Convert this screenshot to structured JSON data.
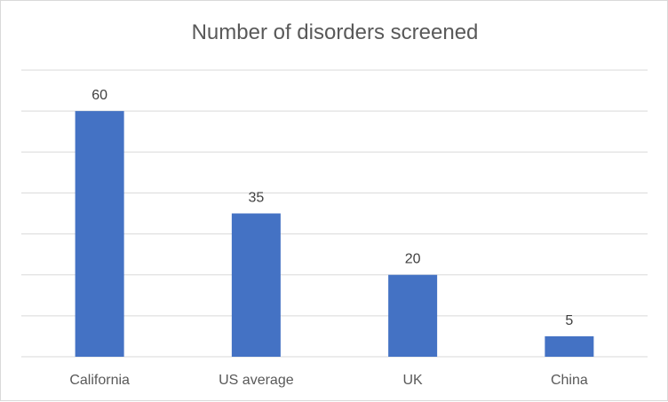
{
  "chart_data": {
    "type": "bar",
    "title": "Number of disorders screened",
    "categories": [
      "California",
      "US average",
      "UK",
      "China"
    ],
    "values": [
      60,
      35,
      20,
      5
    ],
    "xlabel": "",
    "ylabel": "",
    "ylim": [
      0,
      70
    ],
    "gridline_step": 10,
    "grid": true,
    "legend": "none",
    "bar_color": "#4472C4",
    "grid_color": "#d9d9d9"
  }
}
